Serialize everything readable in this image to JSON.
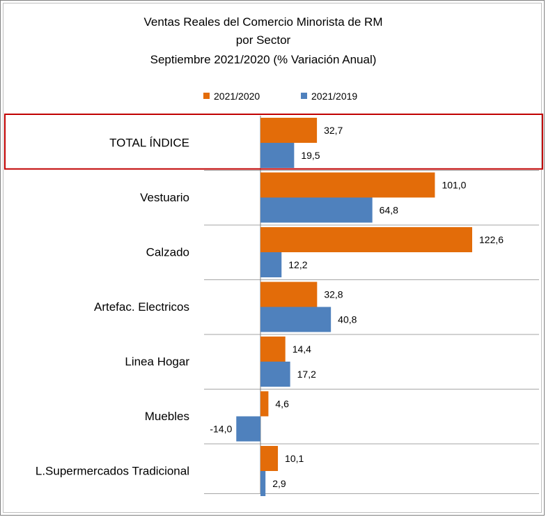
{
  "chart_data": {
    "type": "bar",
    "orientation": "horizontal",
    "title_lines": [
      "Ventas Reales del Comercio Minorista de RM",
      "por Sector",
      "Septiembre 2021/2020 (% Variación Anual)"
    ],
    "categories": [
      "TOTAL ÍNDICE",
      "Vestuario",
      "Calzado",
      "Artefac. Electricos",
      "Linea Hogar",
      "Muebles",
      "L.Supermercados Tradicional"
    ],
    "series": [
      {
        "name": "2021/2020",
        "color": "#e36c09",
        "values": [
          32.7,
          101.0,
          122.6,
          32.8,
          14.4,
          4.6,
          10.1
        ],
        "labels": [
          "32,7",
          "101,0",
          "122,6",
          "32,8",
          "14,4",
          "4,6",
          "10,1"
        ]
      },
      {
        "name": "2021/2019",
        "color": "#4f81bd",
        "values": [
          19.5,
          64.8,
          12.2,
          40.8,
          17.2,
          -14.0,
          2.9
        ],
        "labels": [
          "19,5",
          "64,8",
          "12,2",
          "40,8",
          "17,2",
          "-14,0",
          "2,9"
        ]
      }
    ],
    "xlim": [
      -14.0,
      122.6
    ],
    "legend_position": "top-center",
    "highlight": {
      "category": "TOTAL ÍNDICE",
      "color": "#c00000"
    }
  }
}
